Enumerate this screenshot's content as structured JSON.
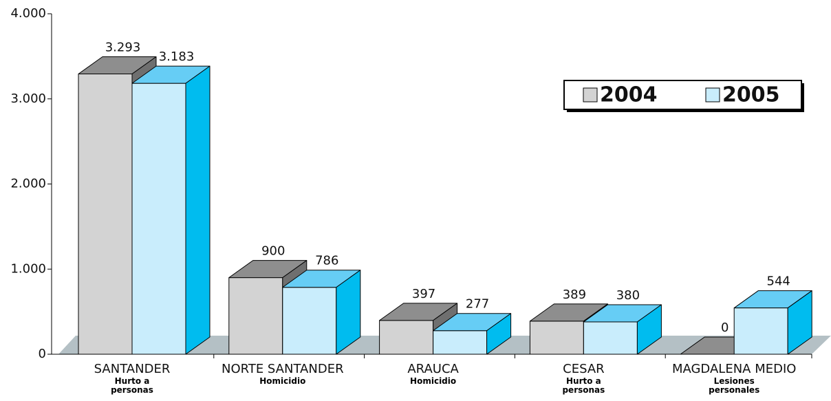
{
  "chart_data": {
    "type": "bar3d",
    "categories": [
      "SANTANDER",
      "NORTE SANTANDER",
      "ARAUCA",
      "CESAR",
      "MAGDALENA MEDIO"
    ],
    "sublabels": [
      "Hurto a personas",
      "Homicidio",
      "Homicidio",
      "Hurto a personas",
      "Lesiones personales"
    ],
    "series": [
      {
        "name": "2004",
        "color": "#d3d3d3",
        "top_color": "#8e8e8e",
        "side_color": "#6f6f6f",
        "values": [
          3293,
          900,
          397,
          389,
          0
        ],
        "value_labels": [
          "3.293",
          "900",
          "397",
          "389",
          "0"
        ]
      },
      {
        "name": "2005",
        "color": "#c9edfc",
        "top_color": "#66cdf5",
        "side_color": "#00bcef",
        "values": [
          3183,
          786,
          277,
          380,
          544
        ],
        "value_labels": [
          "3.183",
          "786",
          "277",
          "380",
          "544"
        ]
      }
    ],
    "ylim": [
      0,
      4000
    ],
    "yticks": [
      0,
      {
        "value": 1000,
        "label": "1.000"
      },
      {
        "value": 2000,
        "label": "2.000"
      },
      {
        "value": 3000,
        "label": "3.000"
      },
      {
        "value": 4000,
        "label": "4.000"
      }
    ],
    "legend": "top-right"
  }
}
